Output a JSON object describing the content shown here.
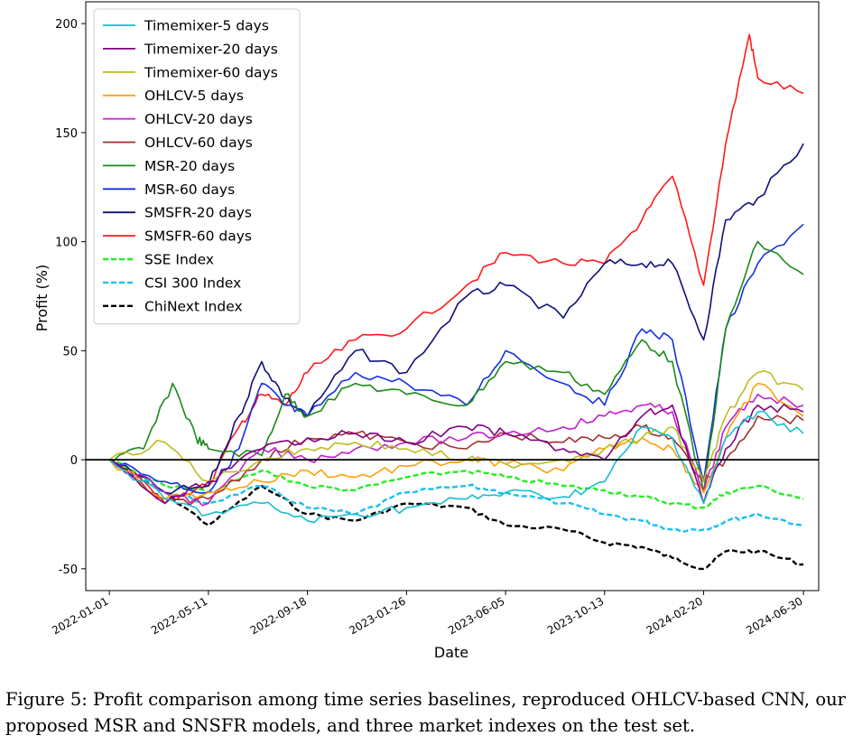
{
  "chart_data": {
    "type": "line",
    "xlabel": "Date",
    "ylabel": "Profit (%)",
    "ylim": [
      -60,
      210
    ],
    "xlim": [
      "2021-12-01",
      "2024-07-20"
    ],
    "yticks": [
      -50,
      0,
      50,
      100,
      150,
      200
    ],
    "xticks": [
      "2022-01-01",
      "2022-05-11",
      "2022-09-18",
      "2023-01-26",
      "2023-06-05",
      "2023-10-13",
      "2024-02-20",
      "2024-06-30"
    ],
    "zero_line": 0,
    "legend_position": "top-left",
    "series": [
      {
        "name": "Timemixer-5 days",
        "color": "#17becf",
        "style": "solid",
        "x": [
          "2022-01-01",
          "2022-03-15",
          "2022-05-11",
          "2022-07-20",
          "2022-09-18",
          "2022-11-20",
          "2023-01-26",
          "2023-04-15",
          "2023-06-05",
          "2023-08-20",
          "2023-10-13",
          "2023-12-01",
          "2024-01-10",
          "2024-02-20",
          "2024-03-20",
          "2024-05-01",
          "2024-06-30"
        ],
        "values": [
          0,
          -18,
          -25,
          -20,
          -28,
          -25,
          -22,
          -18,
          -15,
          -17,
          -10,
          15,
          10,
          -20,
          10,
          22,
          12
        ]
      },
      {
        "name": "Timemixer-20 days",
        "color": "#800080",
        "style": "solid",
        "x": [
          "2022-01-01",
          "2022-03-15",
          "2022-05-11",
          "2022-07-20",
          "2022-09-18",
          "2022-11-20",
          "2023-01-26",
          "2023-04-15",
          "2023-06-05",
          "2023-08-20",
          "2023-10-13",
          "2023-12-01",
          "2024-01-10",
          "2024-02-20",
          "2024-03-20",
          "2024-05-01",
          "2024-06-30"
        ],
        "values": [
          0,
          -20,
          -10,
          5,
          10,
          12,
          8,
          15,
          12,
          5,
          0,
          20,
          25,
          -20,
          5,
          25,
          22
        ]
      },
      {
        "name": "Timemixer-60 days",
        "color": "#bcbd22",
        "style": "solid",
        "x": [
          "2022-01-01",
          "2022-03-15",
          "2022-05-11",
          "2022-07-20",
          "2022-09-18",
          "2022-11-20",
          "2023-01-26",
          "2023-04-15",
          "2023-06-05",
          "2023-08-20",
          "2023-10-13",
          "2023-12-01",
          "2024-01-10",
          "2024-02-20",
          "2024-03-20",
          "2024-05-01",
          "2024-06-30"
        ],
        "values": [
          0,
          8,
          -10,
          0,
          5,
          8,
          5,
          0,
          -2,
          0,
          5,
          10,
          15,
          -10,
          20,
          40,
          32
        ]
      },
      {
        "name": "OHLCV-5 days",
        "color": "#ff9f0e",
        "style": "solid",
        "x": [
          "2022-01-01",
          "2022-03-15",
          "2022-05-11",
          "2022-07-20",
          "2022-09-18",
          "2022-11-20",
          "2023-01-26",
          "2023-04-15",
          "2023-06-05",
          "2023-08-20",
          "2023-10-13",
          "2023-12-01",
          "2024-01-10",
          "2024-02-20",
          "2024-03-20",
          "2024-05-01",
          "2024-06-30"
        ],
        "values": [
          0,
          -18,
          -15,
          -10,
          -5,
          -8,
          -3,
          0,
          -2,
          -5,
          5,
          10,
          5,
          -15,
          10,
          35,
          20
        ]
      },
      {
        "name": "OHLCV-20 days",
        "color": "#c020d0",
        "style": "solid",
        "x": [
          "2022-01-01",
          "2022-03-15",
          "2022-05-11",
          "2022-07-20",
          "2022-09-18",
          "2022-11-20",
          "2023-01-26",
          "2023-04-15",
          "2023-06-05",
          "2023-08-20",
          "2023-10-13",
          "2023-12-01",
          "2024-01-10",
          "2024-02-20",
          "2024-03-20",
          "2024-05-01",
          "2024-06-30"
        ],
        "values": [
          0,
          -15,
          -20,
          5,
          0,
          5,
          8,
          10,
          12,
          15,
          20,
          25,
          22,
          -15,
          15,
          30,
          25
        ]
      },
      {
        "name": "OHLCV-60 days",
        "color": "#a0322d",
        "style": "solid",
        "x": [
          "2022-01-01",
          "2022-03-15",
          "2022-05-11",
          "2022-07-20",
          "2022-09-18",
          "2022-11-20",
          "2023-01-26",
          "2023-04-15",
          "2023-06-05",
          "2023-08-20",
          "2023-10-13",
          "2023-12-01",
          "2024-01-10",
          "2024-02-20",
          "2024-03-20",
          "2024-05-01",
          "2024-06-30"
        ],
        "values": [
          0,
          -20,
          -18,
          0,
          10,
          12,
          8,
          5,
          12,
          8,
          10,
          15,
          10,
          -10,
          0,
          20,
          18
        ]
      },
      {
        "name": "MSR-20 days",
        "color": "#1a8a1a",
        "style": "solid",
        "x": [
          "2022-01-01",
          "2022-02-15",
          "2022-03-25",
          "2022-04-25",
          "2022-05-11",
          "2022-07-20",
          "2022-08-20",
          "2022-09-18",
          "2022-11-20",
          "2023-01-26",
          "2023-04-15",
          "2023-06-05",
          "2023-08-20",
          "2023-10-13",
          "2023-12-01",
          "2024-01-10",
          "2024-02-20",
          "2024-03-20",
          "2024-05-01",
          "2024-06-30"
        ],
        "values": [
          0,
          5,
          35,
          10,
          5,
          2,
          30,
          20,
          35,
          30,
          25,
          45,
          40,
          30,
          55,
          45,
          -15,
          60,
          100,
          85
        ]
      },
      {
        "name": "MSR-60 days",
        "color": "#1530e0",
        "style": "solid",
        "x": [
          "2022-01-01",
          "2022-03-15",
          "2022-05-11",
          "2022-06-20",
          "2022-07-20",
          "2022-08-20",
          "2022-09-18",
          "2022-11-20",
          "2023-01-26",
          "2023-04-15",
          "2023-06-05",
          "2023-08-20",
          "2023-10-13",
          "2023-12-01",
          "2024-01-10",
          "2024-02-20",
          "2024-03-20",
          "2024-05-01",
          "2024-06-30"
        ],
        "values": [
          0,
          -10,
          -15,
          5,
          35,
          25,
          20,
          40,
          35,
          25,
          50,
          35,
          25,
          60,
          55,
          -10,
          60,
          90,
          108
        ]
      },
      {
        "name": "SMSFR-20 days",
        "color": "#10107a",
        "style": "solid",
        "x": [
          "2022-01-01",
          "2022-03-15",
          "2022-05-11",
          "2022-06-20",
          "2022-07-20",
          "2022-08-20",
          "2022-09-18",
          "2022-11-20",
          "2023-01-26",
          "2023-04-15",
          "2023-06-05",
          "2023-08-20",
          "2023-10-13",
          "2023-12-01",
          "2024-01-10",
          "2024-02-20",
          "2024-03-20",
          "2024-05-01",
          "2024-06-30"
        ],
        "values": [
          0,
          -15,
          -12,
          20,
          45,
          28,
          20,
          50,
          40,
          75,
          80,
          65,
          90,
          90,
          90,
          55,
          110,
          120,
          145
        ]
      },
      {
        "name": "SMSFR-60 days",
        "color": "#ff1a1a",
        "style": "solid",
        "x": [
          "2022-01-01",
          "2022-03-15",
          "2022-05-11",
          "2022-06-20",
          "2022-07-20",
          "2022-08-20",
          "2022-09-18",
          "2022-11-20",
          "2023-01-26",
          "2023-04-15",
          "2023-06-05",
          "2023-08-20",
          "2023-10-13",
          "2023-12-01",
          "2024-01-10",
          "2024-02-20",
          "2024-03-20",
          "2024-04-20",
          "2024-05-01",
          "2024-06-30"
        ],
        "values": [
          0,
          -18,
          -12,
          15,
          30,
          25,
          40,
          55,
          60,
          80,
          95,
          90,
          90,
          110,
          130,
          80,
          145,
          195,
          175,
          168
        ]
      },
      {
        "name": "SSE Index",
        "color": "#22ee22",
        "style": "dashed",
        "x": [
          "2022-01-01",
          "2022-03-15",
          "2022-05-11",
          "2022-07-20",
          "2022-09-18",
          "2022-11-20",
          "2023-01-26",
          "2023-04-15",
          "2023-06-05",
          "2023-08-20",
          "2023-10-13",
          "2023-12-01",
          "2024-01-10",
          "2024-02-20",
          "2024-03-20",
          "2024-05-01",
          "2024-06-30"
        ],
        "values": [
          0,
          -12,
          -15,
          -5,
          -12,
          -14,
          -8,
          -5,
          -8,
          -12,
          -14,
          -17,
          -20,
          -22,
          -15,
          -12,
          -18
        ]
      },
      {
        "name": "CSI 300 Index",
        "color": "#19c0f0",
        "style": "dashed",
        "x": [
          "2022-01-01",
          "2022-03-15",
          "2022-05-11",
          "2022-07-20",
          "2022-09-18",
          "2022-11-20",
          "2023-01-26",
          "2023-04-15",
          "2023-06-05",
          "2023-08-20",
          "2023-10-13",
          "2023-12-01",
          "2024-01-10",
          "2024-02-20",
          "2024-03-20",
          "2024-05-01",
          "2024-06-30"
        ],
        "values": [
          0,
          -15,
          -20,
          -12,
          -22,
          -25,
          -15,
          -12,
          -15,
          -20,
          -25,
          -28,
          -32,
          -32,
          -28,
          -25,
          -30
        ]
      },
      {
        "name": "ChiNext Index",
        "color": "#000000",
        "style": "dashed",
        "x": [
          "2022-01-01",
          "2022-03-15",
          "2022-05-11",
          "2022-07-20",
          "2022-09-18",
          "2022-11-20",
          "2023-01-26",
          "2023-04-15",
          "2023-06-05",
          "2023-08-20",
          "2023-10-13",
          "2023-12-01",
          "2024-01-10",
          "2024-02-20",
          "2024-03-20",
          "2024-05-01",
          "2024-06-30"
        ],
        "values": [
          0,
          -15,
          -30,
          -12,
          -25,
          -28,
          -20,
          -22,
          -30,
          -32,
          -38,
          -40,
          -45,
          -50,
          -42,
          -42,
          -48
        ]
      }
    ]
  },
  "caption": "Figure 5: Profit comparison among time series baselines, reproduced OHLCV-based CNN, our proposed MSR and SNSFR models, and three market indexes on the test set."
}
